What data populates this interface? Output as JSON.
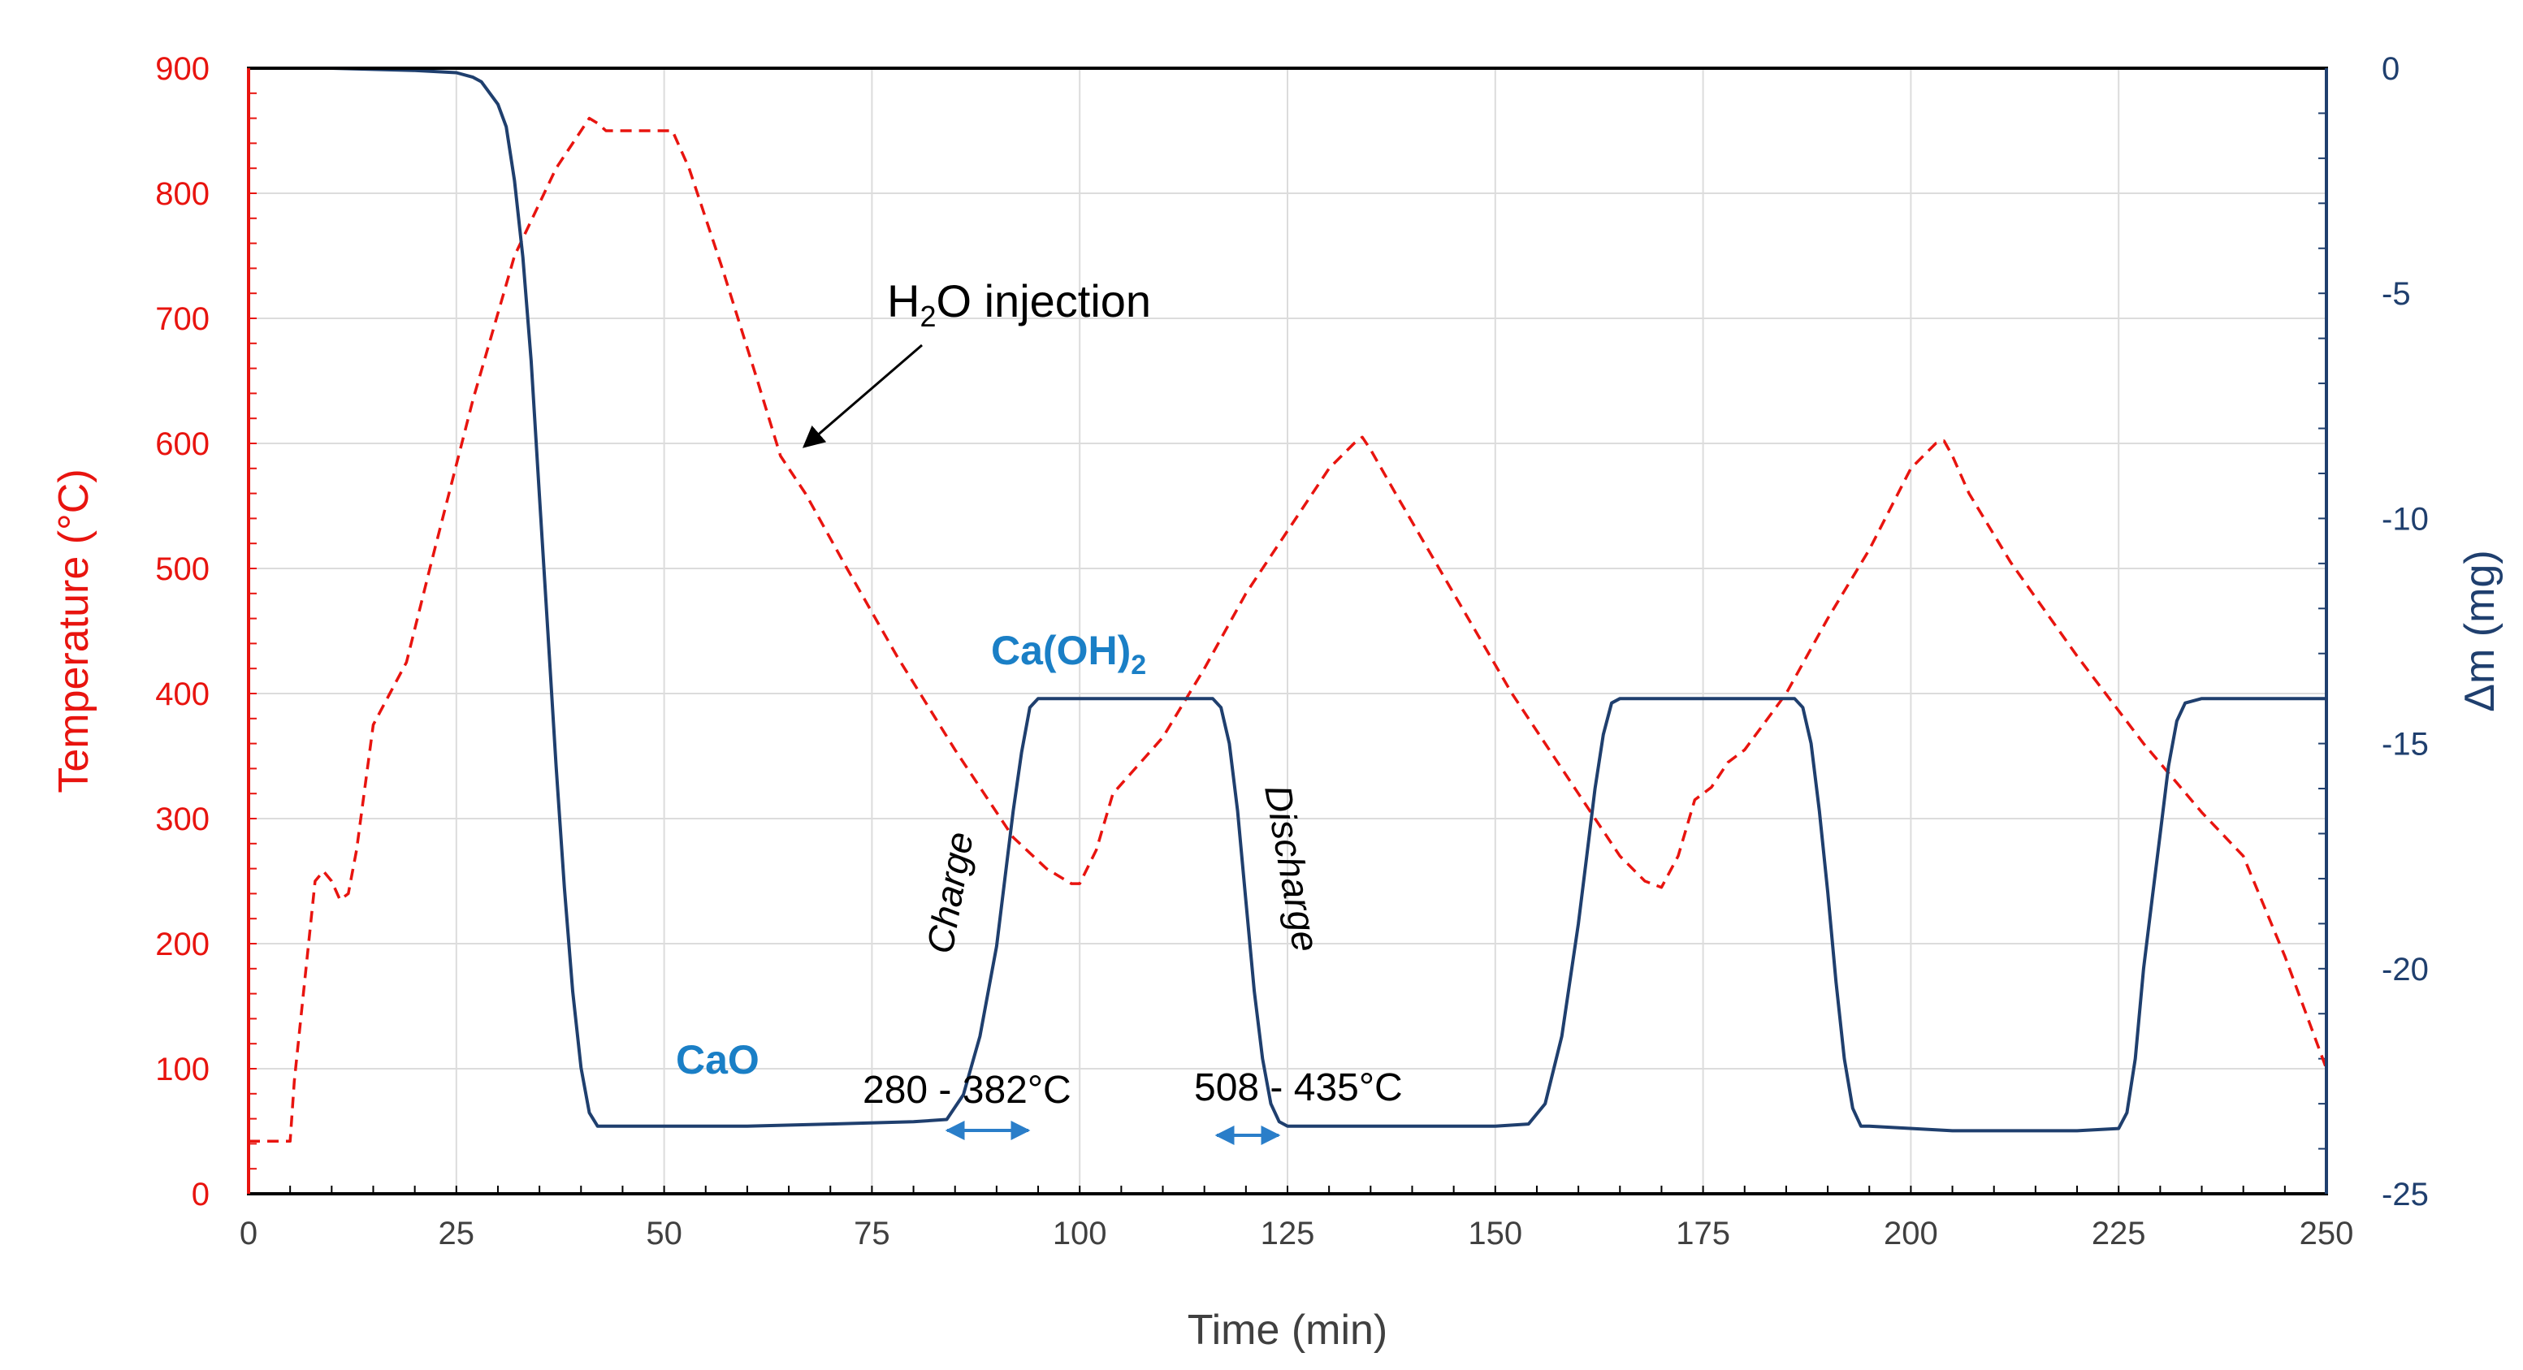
{
  "chart_data": {
    "type": "line",
    "x_axis": {
      "label": "Time (min)",
      "range": [
        0,
        250
      ],
      "ticks": [
        "0",
        "25",
        "50",
        "75",
        "100",
        "125",
        "150",
        "175",
        "200",
        "225",
        "250"
      ]
    },
    "y_left": {
      "label": "Temperature (°C)",
      "range": [
        0,
        900
      ],
      "ticks": [
        "0",
        "100",
        "200",
        "300",
        "400",
        "500",
        "600",
        "700",
        "800",
        "900"
      ]
    },
    "y_right": {
      "label": "Δm (mg)",
      "range": [
        -25,
        0
      ],
      "ticks": [
        "0",
        "-5",
        "-10",
        "-15",
        "-20",
        "-25"
      ]
    },
    "series": [
      {
        "name": "Temperature",
        "axis": "left",
        "style": "dashed",
        "color": "#e8140f",
        "x": [
          0,
          5,
          5.5,
          8,
          9,
          10,
          11,
          12,
          13,
          15,
          17,
          19,
          22,
          27,
          32,
          37,
          41,
          42,
          43,
          45,
          48,
          51,
          53,
          57,
          61,
          64,
          67,
          72,
          78,
          85,
          92,
          96,
          99,
          100,
          102,
          104,
          106,
          108,
          110,
          115,
          120,
          125,
          130,
          133,
          134,
          135,
          138,
          145,
          152,
          160,
          165,
          168,
          170,
          172,
          174,
          176,
          178,
          180,
          185,
          190,
          195,
          200,
          203,
          204,
          205,
          207,
          212,
          220,
          228,
          235,
          240,
          245,
          250
        ],
        "y": [
          42,
          42,
          90,
          250,
          258,
          250,
          235,
          240,
          275,
          375,
          400,
          425,
          505,
          635,
          750,
          820,
          860,
          856,
          850,
          850,
          850,
          850,
          820,
          740,
          655,
          590,
          560,
          500,
          430,
          355,
          285,
          260,
          248,
          248,
          275,
          320,
          335,
          350,
          365,
          420,
          480,
          530,
          580,
          600,
          605,
          595,
          560,
          480,
          400,
          320,
          270,
          250,
          245,
          270,
          315,
          325,
          345,
          355,
          400,
          460,
          515,
          580,
          600,
          602,
          590,
          560,
          505,
          430,
          360,
          305,
          270,
          190,
          100
        ]
      },
      {
        "name": "Δm",
        "axis": "right",
        "style": "solid",
        "color": "#1f3f6e",
        "x": [
          0,
          10,
          20,
          25,
          27,
          28,
          30,
          31,
          32,
          33,
          34,
          35,
          36,
          37,
          38,
          39,
          40,
          41,
          42,
          50,
          60,
          70,
          80,
          84,
          86,
          88,
          90,
          91,
          92,
          93,
          94,
          95,
          100,
          110,
          116,
          117,
          118,
          119,
          120,
          121,
          122,
          123,
          124,
          125,
          135,
          145,
          150,
          154,
          156,
          158,
          160,
          161,
          162,
          163,
          164,
          165,
          170,
          180,
          186,
          187,
          188,
          189,
          190,
          191,
          192,
          193,
          194,
          195,
          205,
          215,
          220,
          225,
          226,
          227,
          228,
          229,
          230,
          231,
          232,
          233,
          234,
          235,
          240,
          250
        ],
        "y": [
          0,
          0,
          -0.05,
          -0.1,
          -0.2,
          -0.3,
          -0.8,
          -1.3,
          -2.5,
          -4.2,
          -6.5,
          -9.5,
          -12.5,
          -15.5,
          -18.2,
          -20.5,
          -22.2,
          -23.2,
          -23.5,
          -23.5,
          -23.5,
          -23.45,
          -23.4,
          -23.35,
          -22.8,
          -21.5,
          -19.5,
          -18,
          -16.5,
          -15.2,
          -14.2,
          -14,
          -14,
          -14,
          -14,
          -14.2,
          -15,
          -16.5,
          -18.5,
          -20.5,
          -22,
          -23,
          -23.4,
          -23.5,
          -23.5,
          -23.5,
          -23.5,
          -23.45,
          -23,
          -21.5,
          -19,
          -17.5,
          -16,
          -14.8,
          -14.1,
          -14,
          -14,
          -14,
          -14,
          -14.2,
          -15,
          -16.5,
          -18.3,
          -20.3,
          -22,
          -23.1,
          -23.5,
          -23.5,
          -23.6,
          -23.6,
          -23.6,
          -23.55,
          -23.2,
          -22,
          -20,
          -18.5,
          -17,
          -15.5,
          -14.5,
          -14.1,
          -14.05,
          -14,
          -14,
          -14
        ]
      }
    ],
    "annotations": {
      "h2o": {
        "prefix": "H",
        "sub": "2",
        "suffix": "O injection"
      },
      "caoh2": {
        "main": "Ca(OH)",
        "sub": "2"
      },
      "cao": "CaO",
      "charge": "Charge",
      "discharge": "Discharge",
      "range_charge": "280 - 382°C",
      "range_discharge": "508 - 435°C"
    }
  }
}
